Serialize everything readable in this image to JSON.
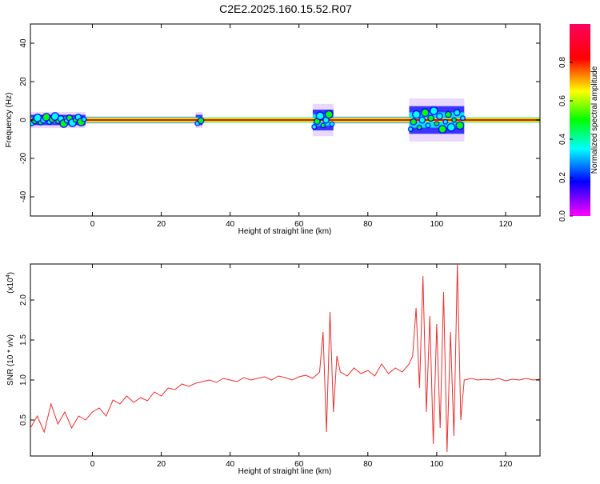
{
  "title": "C2E2.2025.160.15.52.R07",
  "colorbar": {
    "label": "Normalized spectral amplitude",
    "ticks": [
      "0.0",
      "0.2",
      "0.4",
      "0.6",
      "0.8"
    ],
    "tick_values": [
      0.0,
      0.2,
      0.4,
      0.6,
      0.8
    ]
  },
  "chart_data": [
    {
      "type": "heatmap",
      "name": "spectrogram",
      "xlabel": "Height of straight line (km)",
      "ylabel": "Frequency (Hz)",
      "xlim": [
        -18,
        130
      ],
      "ylim": [
        -50,
        50
      ],
      "xticks": [
        0,
        20,
        40,
        60,
        80,
        100,
        120
      ],
      "yticks": [
        -40,
        -20,
        0,
        20,
        40
      ],
      "colormap": [
        "#ff00ff",
        "#0000ff",
        "#00ffff",
        "#00ff00",
        "#ffff00",
        "#ff0000",
        "#ff0060"
      ],
      "color_range": [
        0,
        1
      ],
      "dominant_frequency_hz": 0,
      "ridge_segments": [
        {
          "x": [
            -18,
            -2
          ],
          "spread_hz": 3
        },
        {
          "x": [
            -2,
            30
          ],
          "spread_hz": 1.5
        },
        {
          "x": [
            30,
            32
          ],
          "spread_hz": 3
        },
        {
          "x": [
            32,
            64
          ],
          "spread_hz": 1
        },
        {
          "x": [
            64,
            70
          ],
          "spread_hz": 6
        },
        {
          "x": [
            70,
            92
          ],
          "spread_hz": 1.5
        },
        {
          "x": [
            92,
            108
          ],
          "spread_hz": 8
        },
        {
          "x": [
            108,
            130
          ],
          "spread_hz": 1
        }
      ]
    },
    {
      "type": "line",
      "name": "snr",
      "xlabel": "Height of straight line (km)",
      "ylabel": "SNR (10 * v/v)",
      "y_multiplier_label": "(x10",
      "y_multiplier_exp": "4",
      "y_multiplier_suffix": ")",
      "xlim": [
        -18,
        130
      ],
      "ylim": [
        0.05,
        2.45
      ],
      "xticks": [
        0,
        20,
        40,
        60,
        80,
        100,
        120
      ],
      "yticks": [
        0.5,
        1.0,
        1.5,
        2.0
      ],
      "ytick_labels": [
        "0.5",
        "1.0",
        "1.5",
        "2.0"
      ],
      "color": "#e83030",
      "series": [
        {
          "x": [
            -18,
            -16,
            -14,
            -12,
            -10,
            -8,
            -6,
            -4,
            -2,
            0,
            2,
            4,
            6,
            8,
            10,
            12,
            14,
            16,
            18,
            20,
            22,
            24,
            26,
            28,
            30,
            32,
            34,
            36,
            38,
            40,
            42,
            44,
            46,
            48,
            50,
            52,
            54,
            56,
            58,
            60,
            62,
            64,
            66,
            67,
            68,
            69,
            70,
            71,
            72,
            74,
            76,
            78,
            80,
            82,
            84,
            86,
            88,
            90,
            92,
            93,
            94,
            95,
            96,
            97,
            98,
            99,
            100,
            101,
            102,
            103,
            104,
            105,
            106,
            107,
            108,
            110,
            112,
            114,
            116,
            118,
            120,
            122,
            124,
            126,
            128,
            130
          ],
          "y": [
            0.4,
            0.55,
            0.35,
            0.7,
            0.45,
            0.6,
            0.4,
            0.55,
            0.5,
            0.6,
            0.65,
            0.55,
            0.75,
            0.7,
            0.8,
            0.72,
            0.78,
            0.74,
            0.85,
            0.8,
            0.9,
            0.88,
            0.95,
            0.92,
            0.96,
            0.98,
            1.0,
            0.97,
            1.02,
            1.0,
            0.98,
            1.03,
            1.0,
            1.02,
            1.04,
            1.0,
            1.05,
            1.03,
            1.0,
            1.04,
            1.06,
            1.02,
            1.1,
            1.6,
            0.35,
            1.85,
            0.6,
            1.3,
            1.1,
            1.05,
            1.15,
            1.08,
            1.12,
            1.05,
            1.2,
            1.08,
            1.15,
            1.1,
            1.2,
            1.3,
            1.9,
            0.9,
            2.3,
            0.6,
            1.8,
            0.2,
            1.7,
            0.4,
            2.1,
            0.1,
            1.6,
            0.3,
            2.45,
            0.5,
            1.0,
            1.02,
            1.0,
            1.01,
            1.0,
            1.02,
            0.99,
            1.01,
            1.0,
            1.02,
            1.0,
            1.01
          ]
        }
      ]
    }
  ]
}
